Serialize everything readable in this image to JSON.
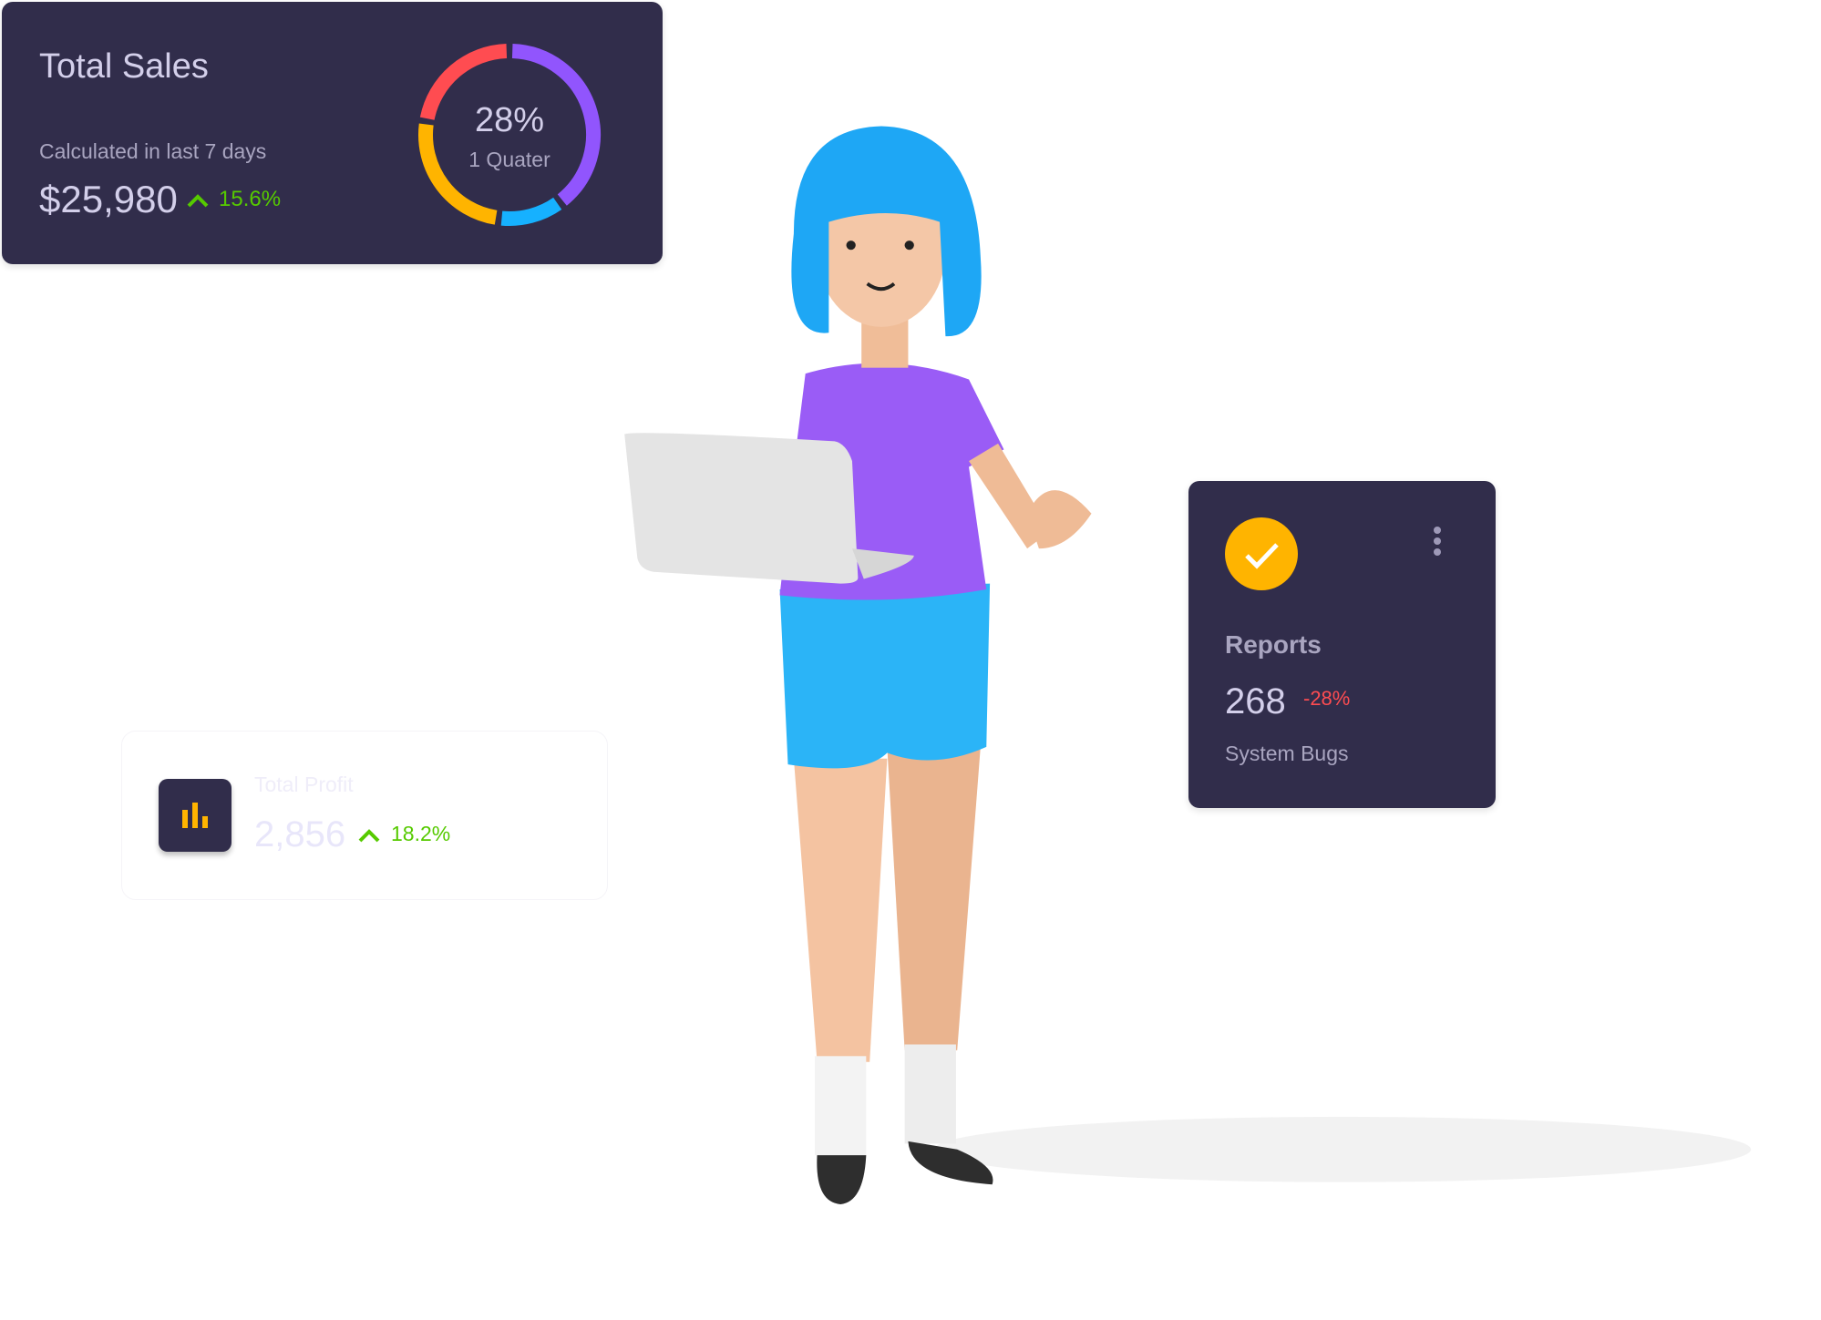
{
  "sales_card": {
    "title": "Total Sales",
    "subtitle": "Calculated in last 7 days",
    "amount": "$25,980",
    "change": "15.6%",
    "change_direction": "up",
    "donut_center_value": "28%",
    "donut_center_label": "1 Quater"
  },
  "reports_card": {
    "icon": "check-circle-icon",
    "menu_icon": "more-vertical-icon",
    "title": "Reports",
    "value": "268",
    "change": "-28%",
    "label": "System Bugs"
  },
  "profit_card": {
    "icon": "bar-chart-icon",
    "title": "Total Profit",
    "value": "2,856",
    "change": "18.2%",
    "change_direction": "up"
  },
  "colors": {
    "card_bg": "#312d4b",
    "positive": "#56ca00",
    "negative": "#ff4c51",
    "accent_yellow": "#ffb400",
    "purple": "#9155fd",
    "blue": "#16b1ff",
    "red": "#ff4c51"
  },
  "chart_data": {
    "type": "pie",
    "variant": "donut",
    "center_text": "28%",
    "center_label": "1 Quater",
    "segments": [
      {
        "color": "#9155fd",
        "value": 38
      },
      {
        "color": "#16b1ff",
        "value": 11
      },
      {
        "color": "#ffb400",
        "value": 24
      },
      {
        "color": "#ff4c51",
        "value": 21
      }
    ]
  }
}
